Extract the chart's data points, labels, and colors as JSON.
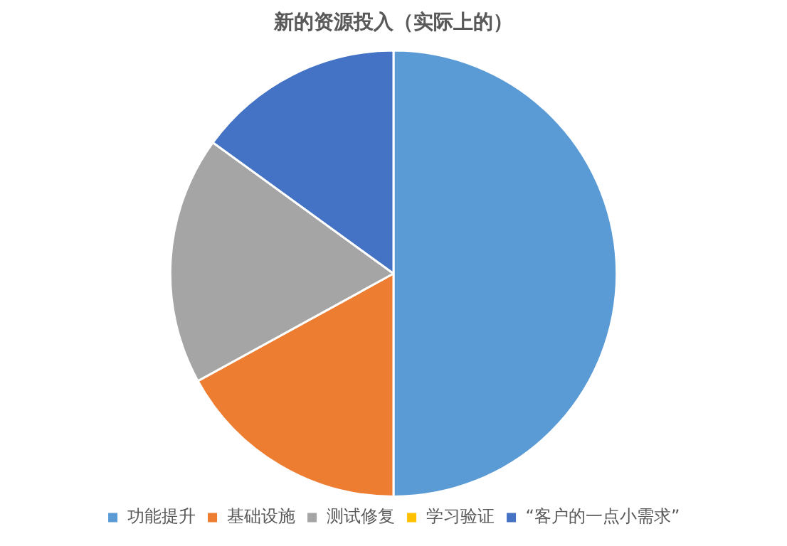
{
  "chart_data": {
    "type": "pie",
    "title": "新的资源投入（实际上的）",
    "categories": [
      "功能提升",
      "基础设施",
      "测试修复",
      "学习验证",
      "“客户的一点小需求”"
    ],
    "values": [
      50,
      17,
      18,
      0,
      15
    ],
    "colors": [
      "#5b9bd5",
      "#ed7d31",
      "#a5a5a5",
      "#ffc000",
      "#4472c4"
    ],
    "legend": "bottom"
  }
}
